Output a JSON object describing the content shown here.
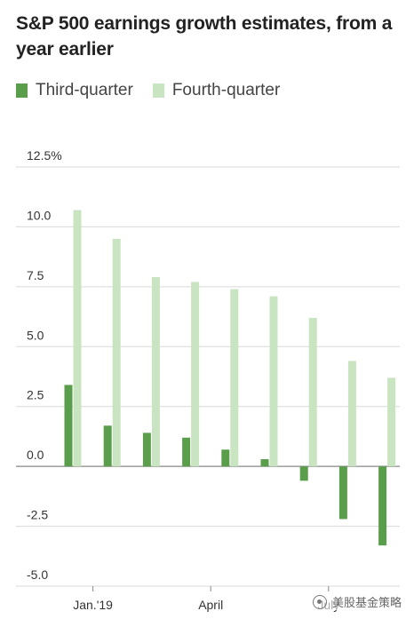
{
  "colors": {
    "third_quarter": "#5a9e4b",
    "fourth_quarter": "#c9e4c0",
    "gridline": "#d9d9d9",
    "zeroline": "#888888",
    "text": "#333333"
  },
  "watermark_text": "美股基金策略",
  "chart_data": {
    "type": "bar",
    "title": "S&P 500 earnings growth estimates, from a year earlier",
    "xlabel": "",
    "ylabel": "",
    "ylim": [
      -5,
      12.5
    ],
    "yticks": [
      12.5,
      10,
      7.5,
      5,
      2.5,
      0,
      -2.5,
      -5
    ],
    "ytick_labels": [
      "12.5%",
      "10.0",
      "7.5",
      "5.0",
      "2.5",
      "0.0",
      "-2.5",
      "-5.0"
    ],
    "xtick_labels": [
      {
        "label": "Jan.'19",
        "after_group": 1
      },
      {
        "label": "April",
        "after_group": 4
      },
      {
        "label": "July",
        "after_group": 7
      }
    ],
    "grid": true,
    "legend_position": "top-left",
    "series": [
      {
        "name": "Third-quarter",
        "values": [
          3.4,
          1.7,
          1.4,
          1.2,
          0.7,
          0.3,
          -0.6,
          -2.2,
          -3.3
        ]
      },
      {
        "name": "Fourth-quarter",
        "values": [
          10.7,
          9.5,
          7.9,
          7.7,
          7.4,
          7.1,
          6.2,
          4.4,
          3.7
        ]
      }
    ]
  }
}
